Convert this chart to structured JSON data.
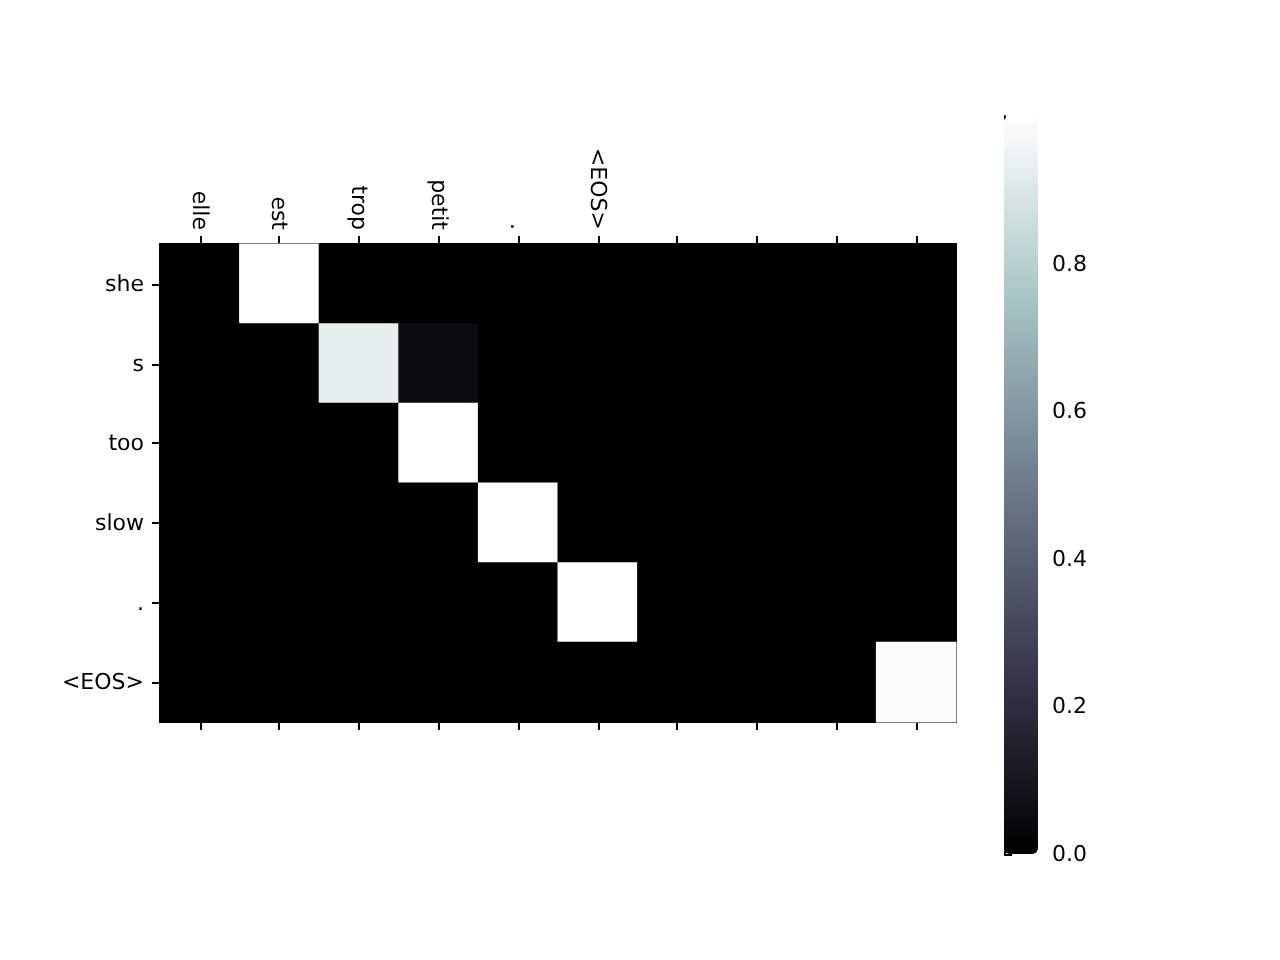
{
  "chart_data": {
    "type": "heatmap",
    "categories": [
      "elle",
      "est",
      "trop",
      "petit",
      ".",
      "<EOS>",
      null,
      null,
      null,
      null
    ],
    "y_categories": [
      "she",
      "s",
      "too",
      "slow",
      ".",
      "<EOS>"
    ],
    "cells": [
      [
        0,
        1.0,
        0,
        0,
        0,
        0,
        0,
        0,
        0,
        0
      ],
      [
        0,
        0,
        0.93,
        0.05,
        0,
        0,
        0,
        0,
        0,
        0
      ],
      [
        0,
        0,
        0,
        1.0,
        0,
        0,
        0,
        0,
        0,
        0
      ],
      [
        0,
        0,
        0,
        0,
        1.0,
        0,
        0,
        0,
        0,
        0
      ],
      [
        0,
        0,
        0,
        0,
        0,
        1.0,
        0,
        0,
        0,
        0
      ],
      [
        0,
        0,
        0,
        0,
        0,
        0,
        0,
        0,
        0,
        0.99
      ]
    ],
    "clim": [
      0,
      1.0
    ],
    "cticks": [
      {
        "value": 0,
        "label": "0.0"
      },
      {
        "value": 0.2,
        "label": "0.2"
      },
      {
        "value": 0.4,
        "label": "0.4"
      },
      {
        "value": 0.6,
        "label": "0.6"
      },
      {
        "value": 0.8,
        "label": "0.8"
      }
    ]
  }
}
